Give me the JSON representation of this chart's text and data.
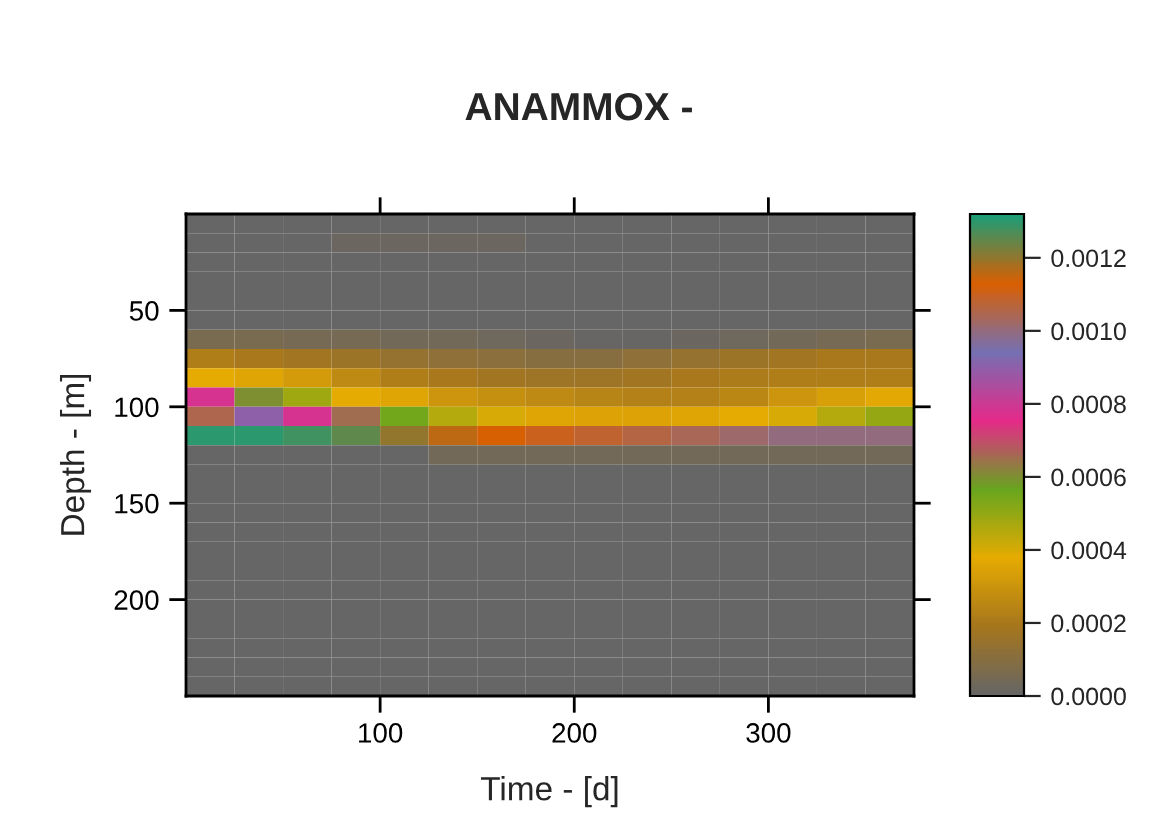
{
  "chart_data": {
    "type": "heatmap",
    "title": "ANAMMOX -",
    "xlabel": "Time - [d]",
    "ylabel": "Depth - [m]",
    "x": [
      12.5,
      37.5,
      62.5,
      87.5,
      112.5,
      137.5,
      162.5,
      187.5,
      212.5,
      237.5,
      262.5,
      287.5,
      312.5,
      337.5,
      362.5
    ],
    "y": [
      5,
      15,
      25,
      35,
      45,
      55,
      65,
      75,
      85,
      95,
      105,
      115,
      125,
      135,
      145,
      155,
      165,
      175,
      185,
      195,
      205,
      215,
      225,
      235,
      245
    ],
    "cells": [
      [
        0,
        0,
        0,
        0,
        0,
        0,
        0,
        0,
        0,
        0,
        0,
        0,
        0,
        0,
        0
      ],
      [
        0,
        0,
        0,
        2e-05,
        2e-05,
        2e-05,
        2e-05,
        0,
        0,
        0,
        0,
        0,
        0,
        0,
        0
      ],
      [
        0,
        0,
        0,
        0,
        0,
        0,
        0,
        0,
        0,
        0,
        0,
        0,
        0,
        0,
        0
      ],
      [
        0,
        0,
        0,
        0,
        0,
        0,
        0,
        0,
        0,
        0,
        0,
        0,
        0,
        0,
        0
      ],
      [
        0,
        0,
        0,
        0,
        0,
        0,
        0,
        0,
        0,
        0,
        0,
        0,
        0,
        0,
        0
      ],
      [
        0,
        0,
        0,
        0,
        0,
        0,
        0,
        0,
        0,
        0,
        0,
        0,
        0,
        0,
        0
      ],
      [
        6e-05,
        6e-05,
        5e-05,
        5e-05,
        4e-05,
        4e-05,
        3e-05,
        2e-05,
        1e-05,
        1e-05,
        2e-05,
        3e-05,
        4e-05,
        5e-05,
        6e-05
      ],
      [
        0.00022,
        0.0002,
        0.00018,
        0.00016,
        0.00014,
        0.00012,
        0.00011,
        0.0001,
        0.0001,
        0.00012,
        0.00014,
        0.00016,
        0.00018,
        0.0002,
        0.0002
      ],
      [
        0.00038,
        0.00036,
        0.00032,
        0.00026,
        0.00022,
        0.0002,
        0.00018,
        0.00017,
        0.00017,
        0.00018,
        0.0002,
        0.00021,
        0.00022,
        0.00022,
        0.00022
      ],
      [
        0.00078,
        0.0006,
        0.00048,
        0.00038,
        0.00036,
        0.0003,
        0.00028,
        0.00026,
        0.00024,
        0.00023,
        0.00023,
        0.00025,
        0.0003,
        0.00034,
        0.00037
      ],
      [
        0.00105,
        0.0009,
        0.00078,
        0.00065,
        0.00055,
        0.00045,
        0.0004,
        0.00036,
        0.00035,
        0.00035,
        0.00036,
        0.00038,
        0.0004,
        0.00045,
        0.0005
      ],
      [
        0.0013,
        0.0013,
        0.00128,
        0.00125,
        0.0012,
        0.00116,
        0.00113,
        0.0011,
        0.00108,
        0.00106,
        0.00104,
        0.00102,
        0.001,
        0.001,
        0.001
      ],
      [
        0,
        0,
        0,
        0,
        0,
        4e-05,
        4e-05,
        4e-05,
        4e-05,
        4e-05,
        4e-05,
        4e-05,
        4e-05,
        4e-05,
        4e-05
      ],
      [
        0,
        0,
        0,
        0,
        0,
        0,
        0,
        0,
        0,
        0,
        0,
        0,
        0,
        0,
        0
      ],
      [
        0,
        0,
        0,
        0,
        0,
        0,
        0,
        0,
        0,
        0,
        0,
        0,
        0,
        0,
        0
      ],
      [
        0,
        0,
        0,
        0,
        0,
        0,
        0,
        0,
        0,
        0,
        0,
        0,
        0,
        0,
        0
      ],
      [
        0,
        0,
        0,
        0,
        0,
        0,
        0,
        0,
        0,
        0,
        0,
        0,
        0,
        0,
        0
      ],
      [
        0,
        0,
        0,
        0,
        0,
        0,
        0,
        0,
        0,
        0,
        0,
        0,
        0,
        0,
        0
      ],
      [
        0,
        0,
        0,
        0,
        0,
        0,
        0,
        0,
        0,
        0,
        0,
        0,
        0,
        0,
        0
      ],
      [
        0,
        0,
        0,
        0,
        0,
        0,
        0,
        0,
        0,
        0,
        0,
        0,
        0,
        0,
        0
      ],
      [
        0,
        0,
        0,
        0,
        0,
        0,
        0,
        0,
        0,
        0,
        0,
        0,
        0,
        0,
        0
      ],
      [
        0,
        0,
        0,
        0,
        0,
        0,
        0,
        0,
        0,
        0,
        0,
        0,
        0,
        0,
        0
      ],
      [
        0,
        0,
        0,
        0,
        0,
        0,
        0,
        0,
        0,
        0,
        0,
        0,
        0,
        0,
        0
      ],
      [
        0,
        0,
        0,
        0,
        0,
        0,
        0,
        0,
        0,
        0,
        0,
        0,
        0,
        0,
        0
      ],
      [
        0,
        0,
        0,
        0,
        0,
        0,
        0,
        0,
        0,
        0,
        0,
        0,
        0,
        0,
        0
      ]
    ],
    "colors": [
      "#666666",
      "#a6761d",
      "#e6ab02",
      "#66a61e",
      "#e7298a",
      "#7570b3",
      "#d95f02",
      "#1b9e77"
    ],
    "xlim": [
      0,
      375
    ],
    "ylim": [
      250,
      0
    ],
    "xticks": [
      100,
      200,
      300
    ],
    "yticks": [
      50,
      100,
      150,
      200
    ],
    "clim": [
      0,
      0.00132
    ],
    "cticks": [
      {
        "value": 0,
        "label": "0.0000"
      },
      {
        "value": 0.0002,
        "label": "0.0002"
      },
      {
        "value": 0.0004,
        "label": "0.0004"
      },
      {
        "value": 0.0006,
        "label": "0.0006"
      },
      {
        "value": 0.0008,
        "label": "0.0008"
      },
      {
        "value": 0.001,
        "label": "0.0010"
      },
      {
        "value": 0.0012,
        "label": "0.0012"
      }
    ]
  }
}
